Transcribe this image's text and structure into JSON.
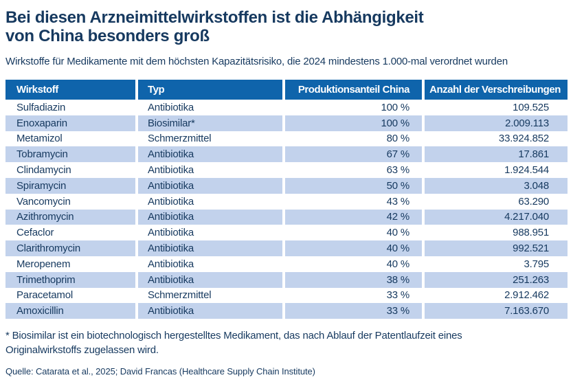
{
  "header": {
    "title_line1": "Bei diesen Arzneimittelwirkstoffen ist die Abhängigkeit",
    "title_line2": "von China besonders groß",
    "subtitle": "Wirkstoffe für Medikamente mit dem höchsten Kapazitätsrisiko, die 2024 mindestens 1.000-mal verordnet wurden"
  },
  "chart_data": {
    "type": "table",
    "title": "Bei diesen Arzneimittelwirkstoffen ist die Abhängigkeit von China besonders groß",
    "subtitle": "Wirkstoffe für Medikamente mit dem höchsten Kapazitätsrisiko, die 2024 mindestens 1.000-mal verordnet wurden",
    "columns": [
      "Wirkstoff",
      "Typ",
      "Produktionsanteil China",
      "Anzahl der Verschreibungen"
    ],
    "rows": [
      {
        "wirkstoff": "Sulfadiazin",
        "typ": "Antibiotika",
        "anteil_china": "100 %",
        "verschreibungen": "109.525"
      },
      {
        "wirkstoff": "Enoxaparin",
        "typ": "Biosimilar*",
        "anteil_china": "100 %",
        "verschreibungen": "2.009.113"
      },
      {
        "wirkstoff": "Metamizol",
        "typ": "Schmerzmittel",
        "anteil_china": "80 %",
        "verschreibungen": "33.924.852"
      },
      {
        "wirkstoff": "Tobramycin",
        "typ": "Antibiotika",
        "anteil_china": "67 %",
        "verschreibungen": "17.861"
      },
      {
        "wirkstoff": "Clindamycin",
        "typ": "Antibiotika",
        "anteil_china": "63 %",
        "verschreibungen": "1.924.544"
      },
      {
        "wirkstoff": "Spiramycin",
        "typ": "Antibiotika",
        "anteil_china": "50 %",
        "verschreibungen": "3.048"
      },
      {
        "wirkstoff": "Vancomycin",
        "typ": "Antibiotika",
        "anteil_china": "43 %",
        "verschreibungen": "63.290"
      },
      {
        "wirkstoff": "Azithromycin",
        "typ": "Antibiotika",
        "anteil_china": "42 %",
        "verschreibungen": "4.217.040"
      },
      {
        "wirkstoff": "Cefaclor",
        "typ": "Antibiotika",
        "anteil_china": "40 %",
        "verschreibungen": "988.951"
      },
      {
        "wirkstoff": "Clarithromycin",
        "typ": "Antibiotika",
        "anteil_china": "40 %",
        "verschreibungen": "992.521"
      },
      {
        "wirkstoff": "Meropenem",
        "typ": "Antibiotika",
        "anteil_china": "40 %",
        "verschreibungen": "3.795"
      },
      {
        "wirkstoff": "Trimethoprim",
        "typ": "Antibiotika",
        "anteil_china": "38 %",
        "verschreibungen": "251.263"
      },
      {
        "wirkstoff": "Paracetamol",
        "typ": "Schmerzmittel",
        "anteil_china": "33 %",
        "verschreibungen": "2.912.462"
      },
      {
        "wirkstoff": "Amoxicillin",
        "typ": "Antibiotika",
        "anteil_china": "33 %",
        "verschreibungen": "7.163.670"
      }
    ]
  },
  "footnote": {
    "line1": "* Biosimilar ist ein biotechnologisch hergestelltes Medikament, das nach Ablauf der Patentlaufzeit eines",
    "line2": "Originalwirkstoffs zugelassen wird."
  },
  "source": "Quelle: Catarata et al., 2025; David Francas (Healthcare Supply Chain Institute)",
  "colors": {
    "header_blue": "#0f64ab",
    "row_stripe_blue": "#c2d2ec",
    "text_navy": "#16395f",
    "background": "#ffffff"
  }
}
